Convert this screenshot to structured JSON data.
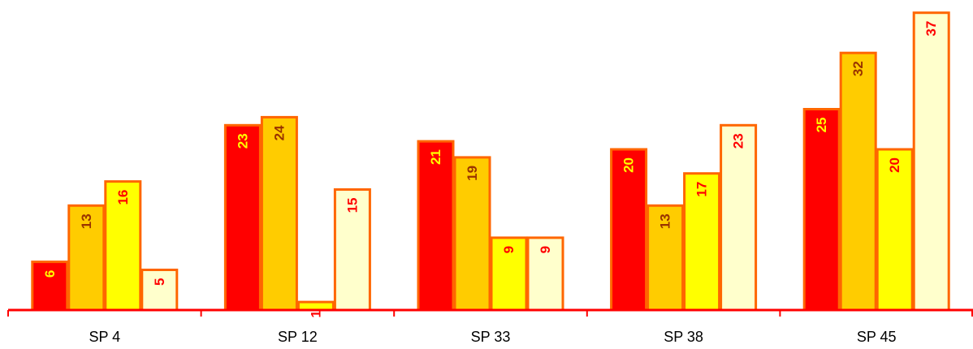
{
  "chart_data": {
    "type": "bar",
    "title": "",
    "xlabel": "",
    "ylabel": "",
    "ylim": [
      0,
      37
    ],
    "grid": false,
    "legend": "none",
    "categories": [
      "SP 4",
      "SP 12",
      "SP 33",
      "SP 38",
      "SP 45"
    ],
    "series": [
      {
        "values": [
          6,
          23,
          21,
          20,
          25
        ],
        "fill": "#ff0000",
        "label_color": "#ffff00"
      },
      {
        "values": [
          13,
          24,
          19,
          13,
          32
        ],
        "fill": "#ffcc00",
        "label_color": "#993300"
      },
      {
        "values": [
          16,
          1,
          9,
          17,
          20
        ],
        "fill": "#ffff00",
        "label_color": "#ff0000"
      },
      {
        "values": [
          5,
          15,
          9,
          23,
          37
        ],
        "fill": "#ffffcc",
        "label_color": "#ff0000"
      }
    ],
    "colors": {
      "bar_outline": "#ff6600",
      "axis": "#ff0000"
    }
  }
}
